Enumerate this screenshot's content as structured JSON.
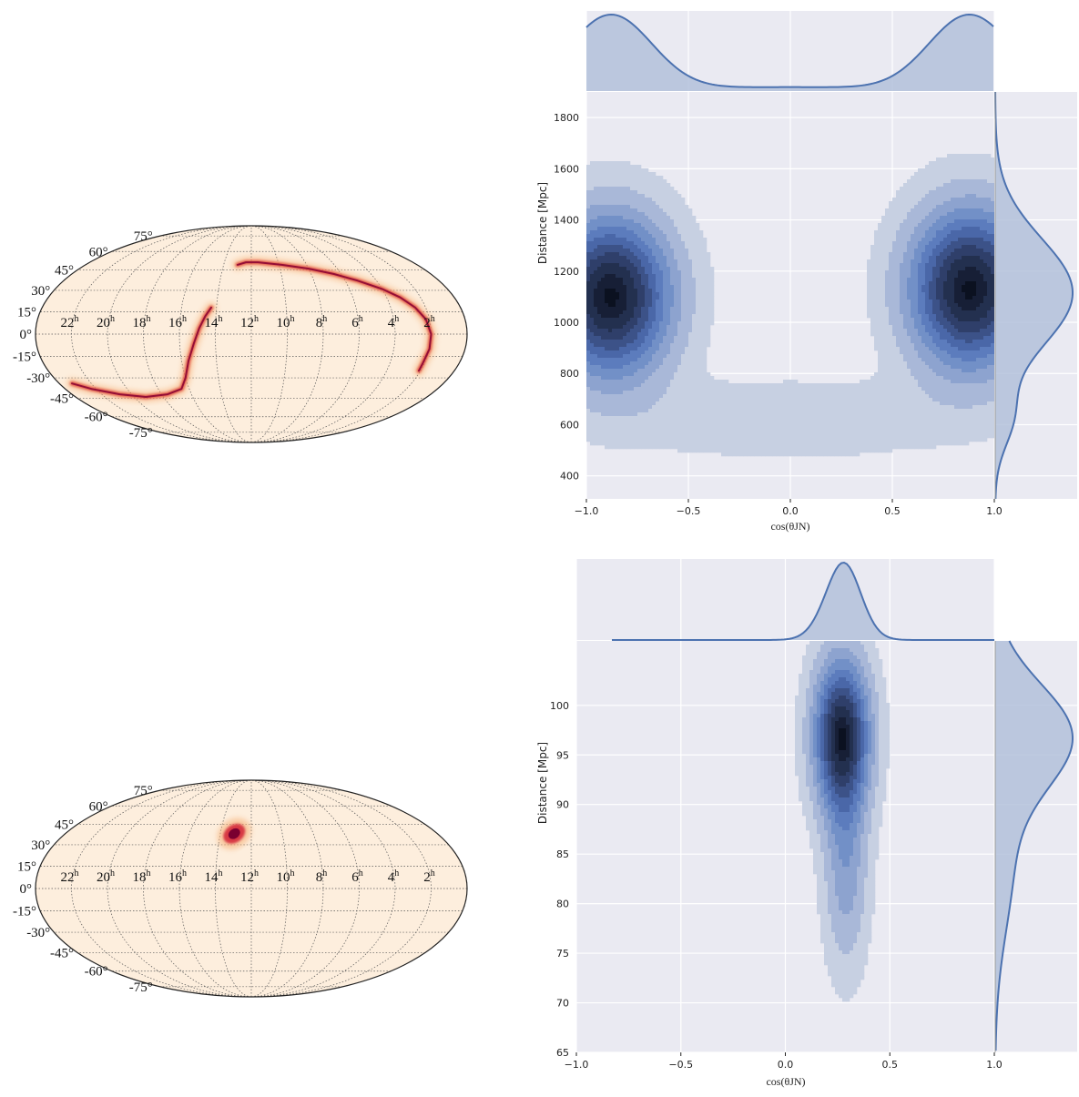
{
  "chart_data": [
    {
      "type": "heatmap",
      "projection": "mollweide",
      "ra_tick_labels": [
        "22",
        "20",
        "18",
        "16",
        "14",
        "12",
        "10",
        "8",
        "6",
        "4",
        "2"
      ],
      "ra_unit": "h",
      "dec_tick_labels": [
        "75°",
        "60°",
        "45°",
        "30°",
        "15°",
        "0°",
        "-15°",
        "-30°",
        "-45°",
        "-60°",
        "-75°"
      ],
      "dec_values": [
        75,
        60,
        45,
        30,
        15,
        0,
        -15,
        -30,
        -45,
        -60,
        -75
      ],
      "grid": true,
      "background_color": "#fdeedd",
      "colormap": [
        "#fdeedd",
        "#f7a35b",
        "#e34a33",
        "#b30d3d",
        "#7a0030"
      ],
      "arc_path_ra_dec": [
        [
          2.1,
          -25
        ],
        [
          2.1,
          -20
        ],
        [
          2.0,
          -10
        ],
        [
          2.0,
          0
        ],
        [
          2.2,
          10
        ],
        [
          2.6,
          18
        ],
        [
          3.2,
          25
        ],
        [
          4.0,
          31
        ],
        [
          5.2,
          37
        ],
        [
          6.5,
          42
        ],
        [
          8.0,
          46
        ],
        [
          9.8,
          49
        ],
        [
          11.5,
          51
        ],
        [
          12.4,
          51
        ],
        [
          13.0,
          49
        ]
      ],
      "arc2_path_ra_dec": [
        [
          14.3,
          18
        ],
        [
          14.6,
          12
        ],
        [
          14.9,
          4
        ],
        [
          15.2,
          -6
        ],
        [
          15.6,
          -18
        ],
        [
          16.0,
          -30
        ],
        [
          16.5,
          -38
        ],
        [
          17.6,
          -42
        ],
        [
          19.2,
          -44
        ],
        [
          20.8,
          -42
        ],
        [
          22.3,
          -38
        ],
        [
          23.2,
          -34
        ]
      ]
    },
    {
      "type": "heatmap",
      "kind": "kde-joint",
      "xlabel": "cos(θJN)",
      "ylabel": "Distance [Mpc]",
      "xlim": [
        -1.0,
        1.0
      ],
      "ylim": [
        310,
        1900
      ],
      "xticks": [
        "−1.0",
        "−0.5",
        "0.0",
        "0.5",
        "1.0"
      ],
      "xtick_values": [
        -1.0,
        -0.5,
        0.0,
        0.5,
        1.0
      ],
      "yticks": [
        "400",
        "600",
        "800",
        "1000",
        "1200",
        "1400",
        "1600",
        "1800"
      ],
      "ytick_values": [
        400,
        600,
        800,
        1000,
        1200,
        1400,
        1600,
        1800
      ],
      "grid": true,
      "modes": [
        {
          "x": -0.88,
          "y": 1100,
          "sx": 0.2,
          "sy": 210,
          "w": 1.0
        },
        {
          "x": 0.88,
          "y": 1130,
          "sx": 0.2,
          "sy": 210,
          "w": 1.0
        },
        {
          "x": 0.0,
          "y": 620,
          "sx": 0.6,
          "sy": 110,
          "w": 0.1
        }
      ],
      "marginal_x_max": 1.0,
      "marginal_y_peak": 1150
    },
    {
      "type": "heatmap",
      "projection": "mollweide",
      "ra_tick_labels": [
        "22",
        "20",
        "18",
        "16",
        "14",
        "12",
        "10",
        "8",
        "6",
        "4",
        "2"
      ],
      "ra_unit": "h",
      "dec_tick_labels": [
        "75°",
        "60°",
        "45°",
        "30°",
        "15°",
        "0°",
        "-15°",
        "-30°",
        "-45°",
        "-60°",
        "-75°"
      ],
      "dec_values": [
        75,
        60,
        45,
        30,
        15,
        0,
        -15,
        -30,
        -45,
        -60,
        -75
      ],
      "grid": true,
      "background_color": "#fdeedd",
      "blob_ra_dec": [
        13.1,
        38
      ],
      "blob_size_ra_dec": [
        0.45,
        6
      ]
    },
    {
      "type": "heatmap",
      "kind": "kde-joint",
      "xlabel": "cos(θJN)",
      "ylabel": "Distance [Mpc]",
      "xlim": [
        -1.0,
        1.0
      ],
      "ylim": [
        65,
        106.5
      ],
      "xticks": [
        "−1.0",
        "−0.5",
        "0.0",
        "0.5",
        "1.0"
      ],
      "xtick_values": [
        -1.0,
        -0.5,
        0.0,
        0.5,
        1.0
      ],
      "yticks": [
        "65",
        "70",
        "75",
        "80",
        "85",
        "90",
        "95",
        "100"
      ],
      "ytick_values": [
        65,
        70,
        75,
        80,
        85,
        90,
        95,
        100
      ],
      "grid": true,
      "modes": [
        {
          "x": 0.27,
          "y": 97.0,
          "sx": 0.09,
          "sy": 5.2,
          "w": 1.0
        },
        {
          "x": 0.29,
          "y": 84.0,
          "sx": 0.07,
          "sy": 7.0,
          "w": 0.3
        }
      ],
      "marginal_y_peak": 97.5
    }
  ]
}
